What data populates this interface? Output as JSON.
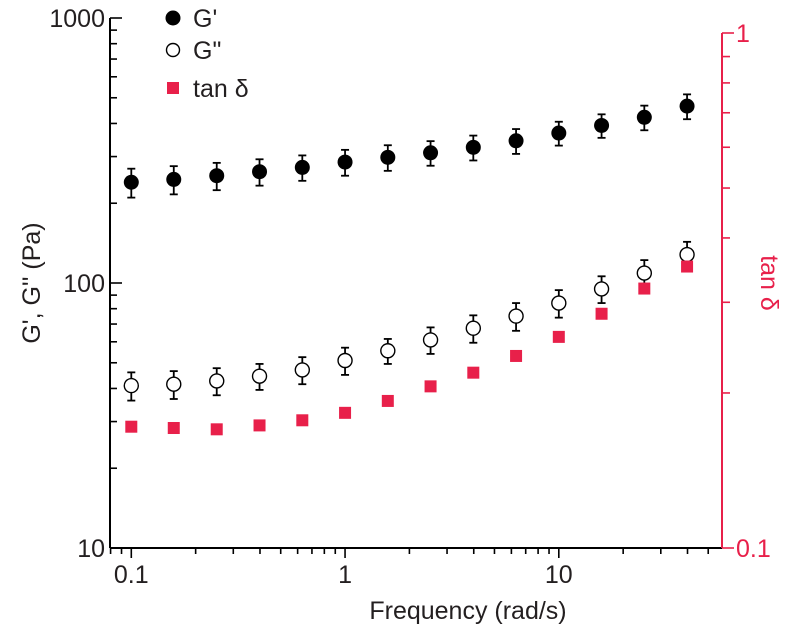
{
  "chart_data": {
    "type": "scatter",
    "xlabel": "Frequency (rad/s)",
    "ylabel_left": "G', G'' (Pa)",
    "ylabel_right": "tan δ",
    "x_scale": "log",
    "y_left_scale": "log",
    "y_right_scale": "log",
    "xlim": [
      0.0795,
      58
    ],
    "ylim_left": [
      10,
      1000
    ],
    "ylim_right": [
      0.1,
      1
    ],
    "x_ticks": [
      {
        "value": 0.1,
        "label": "0.1"
      },
      {
        "value": 1,
        "label": "1"
      },
      {
        "value": 10,
        "label": "10"
      }
    ],
    "y_left_ticks": [
      {
        "value": 10,
        "label": "10"
      },
      {
        "value": 100,
        "label": "100"
      },
      {
        "value": 1000,
        "label": "1000"
      }
    ],
    "y_right_ticks": [
      {
        "value": 0.1,
        "label": "0.1"
      },
      {
        "value": 1,
        "label": "1"
      }
    ],
    "x": [
      0.1,
      0.158,
      0.251,
      0.398,
      0.631,
      1.0,
      1.585,
      2.512,
      3.981,
      6.31,
      10.0,
      15.85,
      25.12,
      39.81
    ],
    "series": [
      {
        "name": "G'",
        "axis": "left",
        "marker": "filled-circle",
        "color": "#000000",
        "values": [
          240,
          246,
          254,
          263,
          273,
          286,
          298,
          310,
          325,
          344,
          368,
          393,
          422,
          465
        ],
        "errors": [
          30,
          30,
          30,
          30,
          30,
          32,
          33,
          33,
          35,
          37,
          38,
          40,
          45,
          50
        ]
      },
      {
        "name": "G\"",
        "axis": "left",
        "marker": "open-circle",
        "color": "#000000",
        "values": [
          41,
          41.5,
          42.7,
          44.5,
          47,
          51,
          55.5,
          61,
          67.5,
          75,
          84,
          95,
          109,
          128
        ],
        "errors": [
          5,
          5,
          5,
          5,
          5.5,
          6,
          6,
          7,
          8,
          9,
          10,
          11,
          13,
          15
        ]
      },
      {
        "name": "tan δ",
        "axis": "right",
        "marker": "square",
        "color": "#e8204a",
        "values": [
          0.172,
          0.171,
          0.17,
          0.173,
          0.177,
          0.183,
          0.193,
          0.206,
          0.219,
          0.236,
          0.257,
          0.285,
          0.319,
          0.352
        ]
      }
    ],
    "legend": {
      "position": "top-left",
      "entries": [
        "G'",
        "G\"",
        "tan δ"
      ]
    },
    "colors": {
      "axis_left": "#000000",
      "axis_right": "#e8204a",
      "tan_marker": "#e8204a"
    }
  }
}
